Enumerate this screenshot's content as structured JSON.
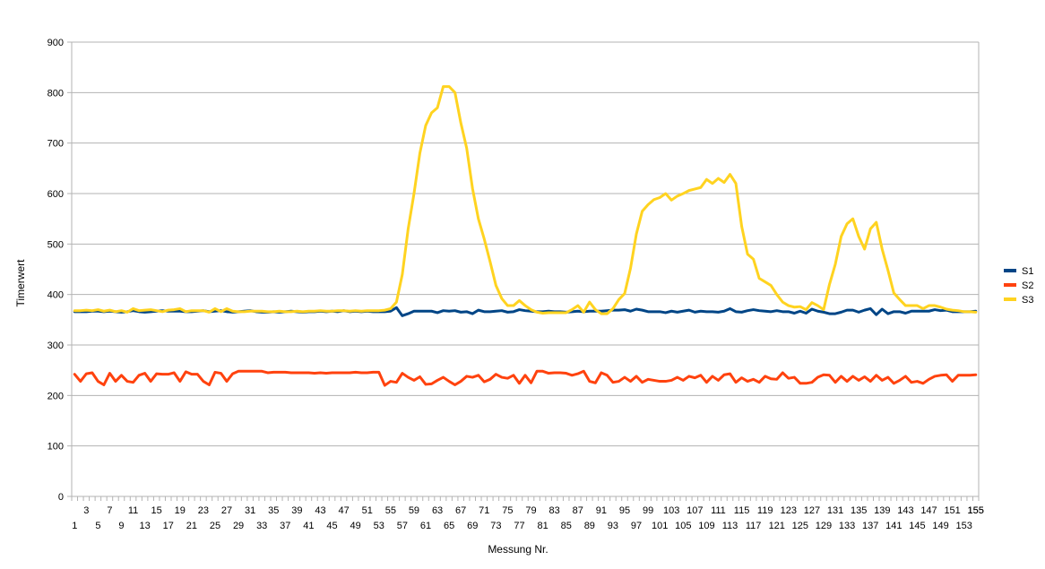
{
  "chart_data": {
    "type": "line",
    "title": "",
    "xlabel": "Messung Nr.",
    "ylabel": "Timerwert",
    "ylim": [
      0,
      900
    ],
    "yticks": [
      0,
      100,
      200,
      300,
      400,
      500,
      600,
      700,
      800,
      900
    ],
    "x": [
      1,
      2,
      3,
      4,
      5,
      6,
      7,
      8,
      9,
      10,
      11,
      12,
      13,
      14,
      15,
      16,
      17,
      18,
      19,
      20,
      21,
      22,
      23,
      24,
      25,
      26,
      27,
      28,
      29,
      30,
      31,
      32,
      33,
      34,
      35,
      36,
      37,
      38,
      39,
      40,
      41,
      42,
      43,
      44,
      45,
      46,
      47,
      48,
      49,
      50,
      51,
      52,
      53,
      54,
      55,
      56,
      57,
      58,
      59,
      60,
      61,
      62,
      63,
      64,
      65,
      66,
      67,
      68,
      69,
      70,
      71,
      72,
      73,
      74,
      75,
      76,
      77,
      78,
      79,
      80,
      81,
      82,
      83,
      84,
      85,
      86,
      87,
      88,
      89,
      90,
      91,
      92,
      93,
      94,
      95,
      96,
      97,
      98,
      99,
      100,
      101,
      102,
      103,
      104,
      105,
      106,
      107,
      108,
      109,
      110,
      111,
      112,
      113,
      114,
      115,
      116,
      117,
      118,
      119,
      120,
      121,
      122,
      123,
      124,
      125,
      126,
      127,
      128,
      129,
      130,
      131,
      132,
      133,
      134,
      135,
      136,
      137,
      138,
      139,
      140,
      141,
      142,
      143,
      144,
      145,
      146,
      147,
      148,
      149,
      150,
      151,
      152,
      153,
      154,
      155
    ],
    "x_odd_labels": [
      "3",
      "7",
      "11",
      "15",
      "19",
      "23",
      "27",
      "31",
      "35",
      "39",
      "43",
      "47",
      "51",
      "55",
      "59",
      "63",
      "67",
      "71",
      "75",
      "79",
      "83",
      "87",
      "91",
      "95",
      "99",
      "103",
      "107",
      "111",
      "115",
      "119",
      "123",
      "127",
      "131",
      "135",
      "139",
      "143",
      "147",
      "151",
      "155"
    ],
    "x_even_labels": [
      "1",
      "5",
      "9",
      "13",
      "17",
      "21",
      "25",
      "29",
      "33",
      "37",
      "41",
      "45",
      "49",
      "53",
      "57",
      "61",
      "65",
      "69",
      "73",
      "77",
      "81",
      "85",
      "89",
      "93",
      "97",
      "101",
      "105",
      "109",
      "113",
      "117",
      "121",
      "125",
      "129",
      "133",
      "137",
      "141",
      "145",
      "149",
      "153"
    ],
    "grid": true,
    "legend_position": "right",
    "series": [
      {
        "name": "S1",
        "color": "#004586",
        "values": [
          366,
          366,
          366,
          367,
          367,
          366,
          367,
          366,
          365,
          366,
          368,
          366,
          365,
          366,
          367,
          368,
          367,
          367,
          367,
          366,
          366,
          367,
          368,
          366,
          367,
          368,
          366,
          365,
          366,
          367,
          368,
          366,
          365,
          365,
          366,
          365,
          366,
          367,
          366,
          365,
          366,
          366,
          367,
          366,
          367,
          366,
          368,
          366,
          367,
          366,
          367,
          366,
          366,
          366,
          367,
          374,
          358,
          362,
          367,
          367,
          367,
          367,
          364,
          368,
          367,
          368,
          365,
          366,
          362,
          369,
          366,
          366,
          367,
          368,
          365,
          366,
          370,
          368,
          367,
          366,
          366,
          367,
          366,
          366,
          365,
          366,
          367,
          366,
          367,
          367,
          367,
          368,
          369,
          369,
          370,
          367,
          371,
          369,
          366,
          366,
          366,
          364,
          367,
          365,
          367,
          369,
          365,
          367,
          366,
          366,
          365,
          367,
          372,
          366,
          365,
          368,
          370,
          368,
          367,
          366,
          368,
          366,
          366,
          363,
          367,
          363,
          371,
          367,
          365,
          362,
          362,
          365,
          369,
          369,
          365,
          369,
          372,
          360,
          371,
          362,
          366,
          366,
          363,
          367,
          367,
          367,
          367,
          370,
          368,
          369,
          366,
          366,
          366,
          366,
          367
        ]
      },
      {
        "name": "S2",
        "color": "#ff420e",
        "values": [
          242,
          228,
          243,
          245,
          228,
          221,
          244,
          228,
          240,
          228,
          226,
          240,
          244,
          228,
          243,
          242,
          242,
          245,
          228,
          247,
          242,
          242,
          228,
          221,
          246,
          244,
          228,
          243,
          248,
          248,
          248,
          248,
          248,
          245,
          246,
          246,
          246,
          245,
          245,
          245,
          245,
          244,
          245,
          244,
          245,
          245,
          245,
          245,
          246,
          245,
          245,
          246,
          246,
          220,
          228,
          226,
          244,
          236,
          230,
          237,
          222,
          223,
          230,
          236,
          228,
          221,
          228,
          238,
          236,
          240,
          227,
          232,
          242,
          236,
          234,
          240,
          224,
          240,
          225,
          248,
          248,
          244,
          245,
          245,
          244,
          240,
          243,
          248,
          228,
          225,
          245,
          240,
          226,
          228,
          236,
          228,
          238,
          226,
          232,
          230,
          228,
          228,
          230,
          236,
          230,
          238,
          235,
          240,
          226,
          238,
          230,
          241,
          243,
          226,
          235,
          228,
          232,
          226,
          238,
          233,
          232,
          245,
          234,
          236,
          224,
          224,
          226,
          236,
          241,
          240,
          226,
          238,
          228,
          238,
          230,
          237,
          228,
          240,
          230,
          236,
          224,
          230,
          238,
          226,
          228,
          224,
          232,
          238,
          240,
          241,
          228,
          240,
          240,
          240,
          241
        ]
      },
      {
        "name": "S3",
        "color": "#ffd320",
        "values": [
          368,
          368,
          369,
          368,
          370,
          367,
          369,
          366,
          368,
          365,
          372,
          368,
          369,
          370,
          368,
          366,
          369,
          370,
          372,
          366,
          368,
          368,
          368,
          365,
          372,
          366,
          372,
          367,
          366,
          366,
          367,
          367,
          367,
          366,
          366,
          367,
          366,
          366,
          367,
          366,
          367,
          367,
          368,
          367,
          367,
          368,
          368,
          367,
          368,
          367,
          368,
          368,
          368,
          369,
          372,
          385,
          440,
          530,
          600,
          680,
          735,
          760,
          770,
          812,
          812,
          800,
          740,
          690,
          610,
          550,
          510,
          465,
          418,
          392,
          378,
          378,
          388,
          378,
          370,
          365,
          363,
          364,
          364,
          364,
          364,
          370,
          378,
          365,
          385,
          370,
          362,
          362,
          372,
          390,
          402,
          452,
          520,
          565,
          578,
          588,
          592,
          600,
          587,
          595,
          600,
          606,
          609,
          612,
          628,
          620,
          630,
          622,
          638,
          620,
          535,
          480,
          470,
          432,
          425,
          418,
          400,
          385,
          378,
          375,
          376,
          370,
          384,
          378,
          370,
          420,
          460,
          515,
          540,
          550,
          515,
          490,
          530,
          543,
          490,
          448,
          403,
          390,
          378,
          378,
          378,
          372,
          378,
          378,
          375,
          371,
          369,
          368,
          366,
          366,
          365
        ]
      }
    ]
  }
}
